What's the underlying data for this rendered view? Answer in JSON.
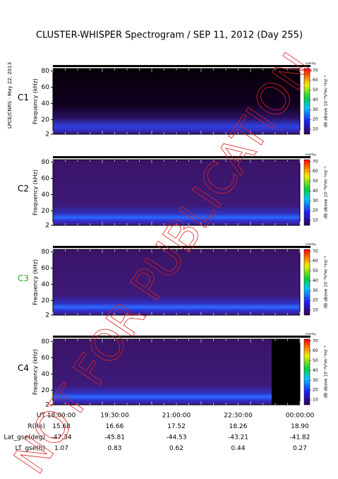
{
  "header": {
    "title": "CLUSTER-WHISPER Spectrogram / SEP 11, 2012 (Day 255)",
    "side_label": "LPCE/CNRS - May 22, 2013",
    "watermark": "NOT FOR PUBLICATION"
  },
  "chart_data": [
    {
      "type": "spectrogram",
      "title": "C1",
      "label_color": "#000000",
      "ylabel": "Frequency (kHz)",
      "ylim": [
        2,
        83
      ],
      "yticks": [
        2,
        20,
        40,
        60,
        80
      ]
    },
    {
      "type": "spectrogram",
      "title": "C2",
      "label_color": "#000000",
      "ylabel": "Frequency (kHz)",
      "ylim": [
        2,
        83
      ],
      "yticks": [
        2,
        20,
        40,
        60,
        80
      ]
    },
    {
      "type": "spectrogram",
      "title": "C3",
      "label_color": "#22aa22",
      "ylabel": "Frequency (kHz)",
      "ylim": [
        2,
        83
      ],
      "yticks": [
        2,
        20,
        40,
        60,
        80
      ]
    },
    {
      "type": "spectrogram",
      "title": "C4",
      "label_color": "#000000",
      "ylabel": "Frequency (kHz)",
      "ylim": [
        2,
        83
      ],
      "yticks": [
        2,
        20,
        40,
        60,
        80
      ]
    }
  ],
  "colorbar": {
    "title": "overlay",
    "label": "dB above 10⁻⁸V²m⁻²Hz⁻¹",
    "clim": [
      5,
      72
    ],
    "ticks": [
      10,
      20,
      30,
      40,
      50,
      60,
      70
    ]
  },
  "ephemeris": {
    "rows": [
      {
        "label": "UT",
        "values": [
          "18:00:00",
          "19:30:00",
          "21:00:00",
          "22:30:00",
          "00:00:00"
        ]
      },
      {
        "label": "R(Re)",
        "values": [
          "15.68",
          "16.66",
          "17.52",
          "18.26",
          "18.90"
        ]
      },
      {
        "label": "Lat_gse(deg)",
        "values": [
          "-47.34",
          "-45.81",
          "-44.53",
          "-43.21",
          "-41.82"
        ]
      },
      {
        "label": "LT_gse(h)",
        "values": [
          "1.07",
          "0.83",
          "0.62",
          "0.44",
          "0.27"
        ]
      }
    ]
  }
}
